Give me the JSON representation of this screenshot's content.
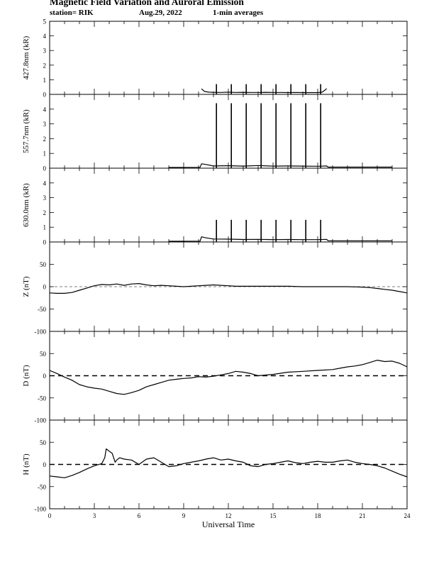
{
  "header": {
    "title": "Magnetic Field Variation and Auroral Emission",
    "station": "station= RIK",
    "date": "Aug.29, 2022",
    "averages": "1-min averages"
  },
  "chart_data": {
    "type": "line",
    "x_axis": {
      "label": "Universal Time",
      "range": [
        0,
        24
      ],
      "ticks": [
        0,
        3,
        6,
        9,
        12,
        15,
        18,
        21,
        24
      ]
    },
    "panels": [
      {
        "ylabel": "427.8nm (kR)",
        "ylim": [
          0,
          5
        ],
        "yticks": [
          0,
          1,
          2,
          3,
          4,
          5
        ],
        "tick_labels": [
          "0",
          "1",
          "2",
          "3",
          "4",
          "5"
        ],
        "baseline": null,
        "series": [
          {
            "x": [
              10.2,
              10.4,
              10.7,
              11.0,
              11.5,
              12.0,
              12.5,
              13.0,
              13.5,
              14.0,
              14.5,
              15.0,
              15.5,
              16.0,
              16.5,
              17.0,
              17.5,
              18.0,
              18.3,
              18.5,
              18.6
            ],
            "y": [
              0.38,
              0.2,
              0.15,
              0.14,
              0.13,
              0.15,
              0.13,
              0.14,
              0.13,
              0.13,
              0.14,
              0.13,
              0.13,
              0.12,
              0.13,
              0.12,
              0.12,
              0.12,
              0.15,
              0.3,
              0.4
            ]
          }
        ],
        "spikes": {
          "x": [
            11.2,
            12.2,
            13.2,
            14.2,
            15.2,
            16.2,
            17.2,
            18.2
          ],
          "top": 0.7
        }
      },
      {
        "ylabel": "557.7nm (kR)",
        "ylim": [
          0,
          5
        ],
        "yticks": [
          0,
          1,
          2,
          3,
          4
        ],
        "tick_labels": [
          "0",
          "1",
          "2",
          "3",
          "4"
        ],
        "baseline": null,
        "series": [
          {
            "x": [
              8.0,
              10.1,
              10.2,
              10.5,
              11.0,
              12.0,
              13.0,
              14.0,
              15.0,
              16.0,
              17.0,
              18.0,
              18.6,
              18.7,
              20.0,
              23.0
            ],
            "y": [
              0.05,
              0.06,
              0.3,
              0.25,
              0.15,
              0.17,
              0.14,
              0.18,
              0.14,
              0.15,
              0.14,
              0.13,
              0.15,
              0.07,
              0.07,
              0.07
            ]
          }
        ],
        "spikes": {
          "x": [
            11.2,
            12.2,
            13.2,
            14.2,
            15.2,
            16.2,
            17.2,
            18.2
          ],
          "top": 4.4
        }
      },
      {
        "ylabel": "630.0nm (kR)",
        "ylim": [
          0,
          5
        ],
        "yticks": [
          0,
          1,
          2,
          3,
          4
        ],
        "tick_labels": [
          "0",
          "1",
          "2",
          "3",
          "4"
        ],
        "baseline": null,
        "series": [
          {
            "x": [
              8.0,
              10.1,
              10.2,
              10.5,
              11.0,
              12.0,
              13.0,
              14.0,
              15.0,
              16.0,
              17.0,
              18.0,
              18.6,
              18.7,
              20.0,
              23.0
            ],
            "y": [
              0.05,
              0.06,
              0.35,
              0.28,
              0.2,
              0.19,
              0.17,
              0.18,
              0.16,
              0.17,
              0.16,
              0.16,
              0.18,
              0.08,
              0.08,
              0.08
            ]
          }
        ],
        "spikes": {
          "x": [
            11.2,
            12.2,
            13.2,
            14.2,
            15.2,
            16.2,
            17.2,
            18.2
          ],
          "top": 1.5
        }
      },
      {
        "ylabel": "Z (nT)",
        "ylim": [
          -100,
          100
        ],
        "yticks": [
          -100,
          -50,
          0,
          50
        ],
        "tick_labels": [
          "-100",
          "-50",
          "0",
          "50"
        ],
        "baseline": "thin",
        "series": [
          {
            "x": [
              0,
              0.5,
              1.0,
              1.5,
              2.0,
              2.5,
              3.0,
              3.5,
              4.0,
              4.5,
              5.0,
              5.5,
              6.0,
              6.5,
              7.0,
              7.5,
              8.0,
              8.5,
              9.0,
              9.5,
              10.0,
              10.5,
              11.0,
              11.5,
              12.0,
              12.5,
              13.0,
              14.0,
              15.0,
              16.0,
              17.0,
              18.0,
              19.0,
              20.0,
              21.0,
              21.5,
              22.0,
              22.5,
              23.0,
              23.5,
              24.0
            ],
            "y": [
              -14,
              -15,
              -15,
              -13,
              -8,
              -3,
              2,
              5,
              4,
              6,
              3,
              6,
              7,
              4,
              2,
              3,
              2,
              1,
              0,
              1,
              2,
              3,
              4,
              3,
              2,
              1,
              1,
              1,
              1,
              1,
              0,
              0,
              0,
              0,
              -1,
              -2,
              -4,
              -6,
              -8,
              -11,
              -14
            ]
          }
        ],
        "spikes": null
      },
      {
        "ylabel": "D (nT)",
        "ylim": [
          -100,
          100
        ],
        "yticks": [
          -100,
          -50,
          0,
          50
        ],
        "tick_labels": [
          "-100",
          "-50",
          "0",
          "50"
        ],
        "baseline": "dashed",
        "series": [
          {
            "x": [
              0,
              0.5,
              1.0,
              1.5,
              2.0,
              2.5,
              3.0,
              3.5,
              4.0,
              4.5,
              5.0,
              5.5,
              6.0,
              6.5,
              7.0,
              7.5,
              8.0,
              8.5,
              9.0,
              9.5,
              10.0,
              10.5,
              11.0,
              11.5,
              12.0,
              12.5,
              13.0,
              13.5,
              14.0,
              15.0,
              16.0,
              17.0,
              18.0,
              19.0,
              19.5,
              20.0,
              20.5,
              21.0,
              21.5,
              22.0,
              22.5,
              23.0,
              23.5,
              24.0
            ],
            "y": [
              12,
              5,
              -3,
              -10,
              -20,
              -25,
              -28,
              -30,
              -35,
              -40,
              -42,
              -38,
              -33,
              -25,
              -20,
              -15,
              -10,
              -8,
              -6,
              -5,
              -2,
              -3,
              -1,
              2,
              5,
              10,
              8,
              5,
              0,
              3,
              8,
              10,
              12,
              14,
              17,
              20,
              22,
              25,
              30,
              35,
              32,
              33,
              28,
              20
            ]
          }
        ],
        "spikes": null
      },
      {
        "ylabel": "H (nT)",
        "ylim": [
          -100,
          100
        ],
        "yticks": [
          -100,
          -50,
          0,
          50
        ],
        "tick_labels": [
          "-100",
          "-50",
          "0",
          "50"
        ],
        "baseline": "dashed",
        "series": [
          {
            "x": [
              0,
              0.5,
              1.0,
              1.5,
              2.0,
              2.5,
              3.0,
              3.5,
              3.7,
              3.8,
              4.0,
              4.2,
              4.4,
              4.5,
              4.7,
              5.0,
              5.5,
              6.0,
              6.5,
              7.0,
              7.5,
              8.0,
              8.5,
              9.0,
              9.5,
              10.0,
              10.5,
              11.0,
              11.5,
              12.0,
              12.5,
              13.0,
              13.5,
              14.0,
              14.5,
              15.0,
              15.5,
              16.0,
              16.5,
              17.0,
              17.5,
              18.0,
              18.5,
              19.0,
              19.5,
              20.0,
              20.5,
              21.0,
              21.5,
              22.0,
              22.5,
              23.0,
              23.5,
              24.0
            ],
            "y": [
              -26,
              -28,
              -30,
              -25,
              -18,
              -10,
              -3,
              2,
              15,
              35,
              30,
              25,
              5,
              10,
              15,
              12,
              10,
              0,
              12,
              15,
              5,
              -5,
              -3,
              2,
              5,
              8,
              12,
              15,
              10,
              12,
              8,
              5,
              -3,
              -5,
              0,
              2,
              5,
              8,
              4,
              2,
              5,
              7,
              5,
              5,
              8,
              10,
              5,
              2,
              0,
              -3,
              -8,
              -15,
              -22,
              -28
            ]
          }
        ],
        "spikes": null
      }
    ]
  }
}
